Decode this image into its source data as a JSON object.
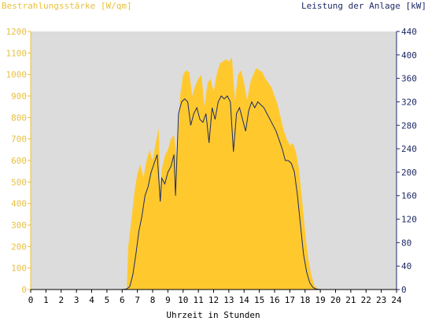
{
  "colors": {
    "irradiance": "#ffc92e",
    "power": "#1a2a66",
    "plot_bg": "#dcdcdc",
    "left_axis": "#e8c040",
    "right_axis": "#1e2a66"
  },
  "chart_data": {
    "type": "area",
    "title": "",
    "xlabel": "Uhrzeit in Stunden",
    "ylabel_left": "Bestrahlungsstärke [W/qm]",
    "ylabel_right": "Leistung der Anlage [kW]",
    "xlim": [
      0,
      24
    ],
    "ylim_left": [
      0,
      1200
    ],
    "ylim_right": [
      0,
      440
    ],
    "x_ticks": [
      "0",
      "1",
      "2",
      "3",
      "4",
      "5",
      "6",
      "7",
      "8",
      "9",
      "10",
      "11",
      "12",
      "13",
      "14",
      "15",
      "16",
      "17",
      "18",
      "19",
      "20",
      "21",
      "22",
      "23",
      "24"
    ],
    "y_ticks_left": [
      "0",
      "100",
      "200",
      "300",
      "400",
      "500",
      "600",
      "700",
      "800",
      "900",
      "1000",
      "1100",
      "1200"
    ],
    "y_ticks_right": [
      "0",
      "40",
      "80",
      "120",
      "160",
      "200",
      "240",
      "280",
      "320",
      "360",
      "400",
      "440"
    ],
    "grid": false,
    "series": [
      {
        "name": "Bestrahlungsstärke",
        "axis": "left",
        "style": "area",
        "points": [
          [
            0,
            0
          ],
          [
            6.0,
            0
          ],
          [
            6.3,
            5
          ],
          [
            6.4,
            200
          ],
          [
            6.6,
            320
          ],
          [
            6.8,
            450
          ],
          [
            7.0,
            540
          ],
          [
            7.2,
            580
          ],
          [
            7.4,
            520
          ],
          [
            7.6,
            600
          ],
          [
            7.8,
            650
          ],
          [
            8.0,
            600
          ],
          [
            8.2,
            680
          ],
          [
            8.4,
            750
          ],
          [
            8.5,
            450
          ],
          [
            8.6,
            560
          ],
          [
            8.8,
            620
          ],
          [
            9.0,
            650
          ],
          [
            9.2,
            700
          ],
          [
            9.4,
            720
          ],
          [
            9.6,
            600
          ],
          [
            9.8,
            900
          ],
          [
            10.0,
            1000
          ],
          [
            10.2,
            1020
          ],
          [
            10.4,
            1010
          ],
          [
            10.6,
            900
          ],
          [
            10.8,
            950
          ],
          [
            11.0,
            980
          ],
          [
            11.2,
            1000
          ],
          [
            11.4,
            850
          ],
          [
            11.6,
            960
          ],
          [
            11.8,
            980
          ],
          [
            12.0,
            920
          ],
          [
            12.2,
            1000
          ],
          [
            12.4,
            1050
          ],
          [
            12.6,
            1060
          ],
          [
            12.8,
            1070
          ],
          [
            13.0,
            1060
          ],
          [
            13.2,
            1080
          ],
          [
            13.4,
            880
          ],
          [
            13.6,
            1000
          ],
          [
            13.8,
            1020
          ],
          [
            14.0,
            960
          ],
          [
            14.2,
            880
          ],
          [
            14.4,
            960
          ],
          [
            14.6,
            1000
          ],
          [
            14.8,
            1030
          ],
          [
            15.0,
            1020
          ],
          [
            15.2,
            1010
          ],
          [
            15.4,
            980
          ],
          [
            15.6,
            960
          ],
          [
            15.8,
            940
          ],
          [
            16.0,
            900
          ],
          [
            16.2,
            860
          ],
          [
            16.4,
            800
          ],
          [
            16.6,
            740
          ],
          [
            16.8,
            700
          ],
          [
            17.0,
            670
          ],
          [
            17.2,
            680
          ],
          [
            17.4,
            640
          ],
          [
            17.6,
            560
          ],
          [
            17.8,
            420
          ],
          [
            18.0,
            270
          ],
          [
            18.2,
            150
          ],
          [
            18.4,
            70
          ],
          [
            18.6,
            20
          ],
          [
            18.8,
            5
          ],
          [
            19.0,
            0
          ],
          [
            24,
            0
          ]
        ]
      },
      {
        "name": "Leistung der Anlage",
        "axis": "right",
        "style": "line",
        "points": [
          [
            0,
            0
          ],
          [
            6.0,
            0
          ],
          [
            6.3,
            1
          ],
          [
            6.5,
            5
          ],
          [
            6.7,
            25
          ],
          [
            6.9,
            60
          ],
          [
            7.1,
            100
          ],
          [
            7.3,
            125
          ],
          [
            7.5,
            160
          ],
          [
            7.7,
            175
          ],
          [
            7.9,
            200
          ],
          [
            8.1,
            215
          ],
          [
            8.3,
            230
          ],
          [
            8.5,
            150
          ],
          [
            8.6,
            190
          ],
          [
            8.8,
            180
          ],
          [
            9.0,
            200
          ],
          [
            9.2,
            210
          ],
          [
            9.4,
            230
          ],
          [
            9.5,
            160
          ],
          [
            9.7,
            300
          ],
          [
            9.9,
            320
          ],
          [
            10.1,
            325
          ],
          [
            10.3,
            320
          ],
          [
            10.5,
            280
          ],
          [
            10.7,
            300
          ],
          [
            10.9,
            310
          ],
          [
            11.1,
            290
          ],
          [
            11.3,
            285
          ],
          [
            11.5,
            300
          ],
          [
            11.7,
            250
          ],
          [
            11.9,
            310
          ],
          [
            12.1,
            290
          ],
          [
            12.3,
            320
          ],
          [
            12.5,
            330
          ],
          [
            12.7,
            325
          ],
          [
            12.9,
            330
          ],
          [
            13.1,
            320
          ],
          [
            13.3,
            235
          ],
          [
            13.5,
            300
          ],
          [
            13.7,
            310
          ],
          [
            13.9,
            290
          ],
          [
            14.1,
            270
          ],
          [
            14.3,
            305
          ],
          [
            14.5,
            320
          ],
          [
            14.7,
            310
          ],
          [
            14.9,
            320
          ],
          [
            15.1,
            315
          ],
          [
            15.3,
            310
          ],
          [
            15.5,
            300
          ],
          [
            15.7,
            290
          ],
          [
            15.9,
            280
          ],
          [
            16.1,
            270
          ],
          [
            16.3,
            255
          ],
          [
            16.5,
            240
          ],
          [
            16.7,
            220
          ],
          [
            16.9,
            220
          ],
          [
            17.1,
            215
          ],
          [
            17.3,
            200
          ],
          [
            17.5,
            160
          ],
          [
            17.7,
            110
          ],
          [
            17.9,
            60
          ],
          [
            18.1,
            30
          ],
          [
            18.3,
            12
          ],
          [
            18.5,
            4
          ],
          [
            18.7,
            1
          ],
          [
            19.0,
            0
          ],
          [
            24,
            0
          ]
        ]
      }
    ]
  }
}
